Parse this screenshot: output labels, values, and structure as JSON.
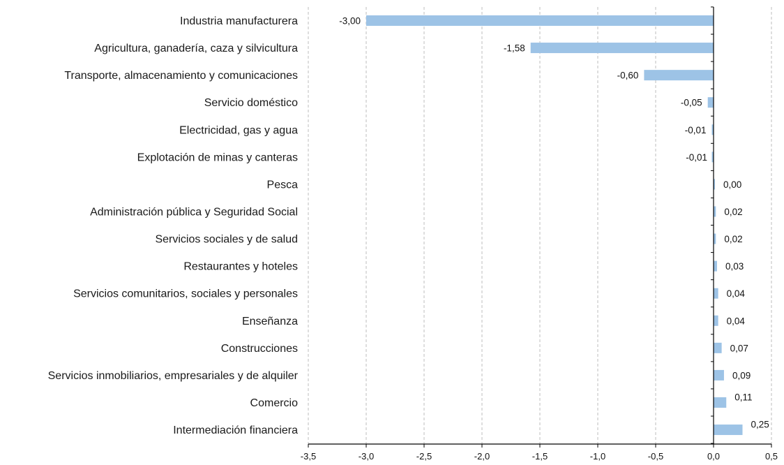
{
  "chart_data": {
    "type": "bar",
    "orientation": "horizontal",
    "categories": [
      "Industria manufacturera",
      "Agricultura, ganadería, caza y silvicultura",
      "Transporte, almacenamiento y comunicaciones",
      "Servicio doméstico",
      "Electricidad, gas y agua",
      "Explotación de minas y canteras",
      "Pesca",
      "Administración pública y Seguridad Social",
      "Servicios sociales y de salud",
      "Restaurantes y hoteles",
      "Servicios comunitarios, sociales y personales",
      "Enseñanza",
      "Construcciones",
      "Servicios inmobiliarios, empresariales y de alquiler",
      "Comercio",
      "Intermediación financiera"
    ],
    "values": [
      -3.0,
      -1.58,
      -0.6,
      -0.05,
      -0.01,
      -0.01,
      0.0,
      0.02,
      0.02,
      0.03,
      0.04,
      0.04,
      0.07,
      0.09,
      0.11,
      0.25
    ],
    "value_labels": [
      "-3,00",
      "-1,58",
      "-0,60",
      "-0,05",
      "-0,01",
      "-0,01",
      "0,00",
      "0,02",
      "0,02",
      "0,03",
      "0,04",
      "0,04",
      "0,07",
      "0,09",
      "0,11",
      "0,25"
    ],
    "xlim": [
      -3.5,
      0.5
    ],
    "xticks": [
      -3.5,
      -3.0,
      -2.5,
      -2.0,
      -1.5,
      -1.0,
      -0.5,
      0.0,
      0.5
    ],
    "xtick_labels": [
      "-3,5",
      "-3,0",
      "-2,5",
      "-2,0",
      "-1,5",
      "-1,0",
      "-0,5",
      "0,0",
      "0,5"
    ],
    "title": "",
    "xlabel": "",
    "ylabel": "",
    "grid": "vertical dashed",
    "legend": "none",
    "colors": {
      "bar": "#9dc3e6",
      "grid": "#bdbdbd",
      "axis": "#000000",
      "text": "#1a1a1a"
    }
  }
}
